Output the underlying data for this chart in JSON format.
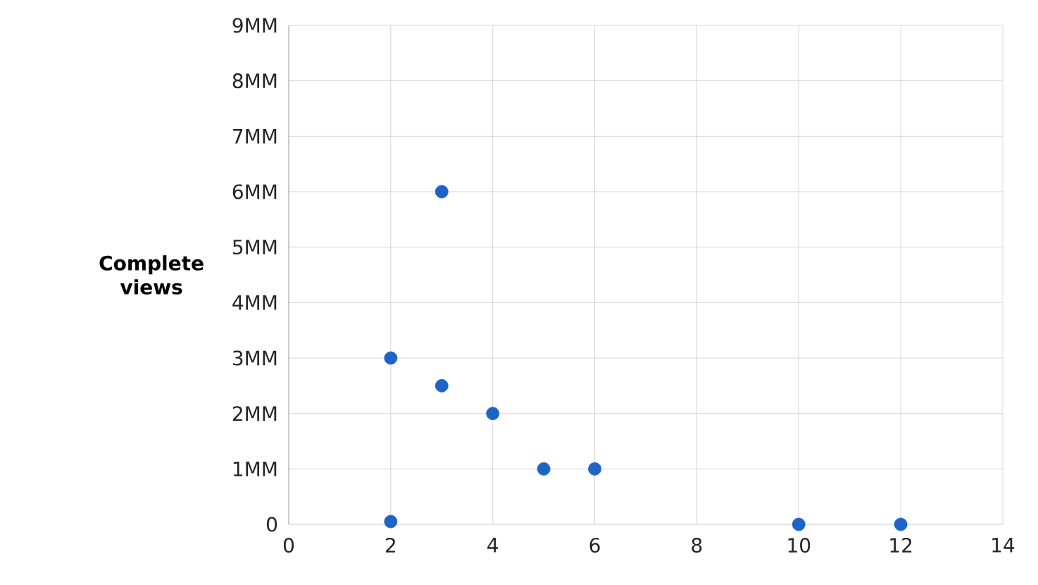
{
  "chart_data": {
    "type": "scatter",
    "ylabel": "Complete views",
    "x": [
      2,
      2,
      3,
      3,
      4,
      5,
      6,
      10,
      12
    ],
    "values": [
      0.05,
      3,
      6,
      2.5,
      2,
      1,
      1,
      0,
      0
    ],
    "color": "#1f63c6",
    "marker": "circle",
    "xlim": [
      0,
      14
    ],
    "xticks": [
      0,
      2,
      4,
      6,
      8,
      10,
      12,
      14
    ],
    "ylim": [
      0,
      9
    ],
    "yticks": [
      {
        "value": 0,
        "label": "0"
      },
      {
        "value": 1,
        "label": "1MM"
      },
      {
        "value": 2,
        "label": "2MM"
      },
      {
        "value": 3,
        "label": "3MM"
      },
      {
        "value": 4,
        "label": "4MM"
      },
      {
        "value": 5,
        "label": "5MM"
      },
      {
        "value": 6,
        "label": "6MM"
      },
      {
        "value": 7,
        "label": "7MM"
      },
      {
        "value": 8,
        "label": "8MM"
      },
      {
        "value": 9,
        "label": "9MM"
      }
    ],
    "grid": true
  }
}
